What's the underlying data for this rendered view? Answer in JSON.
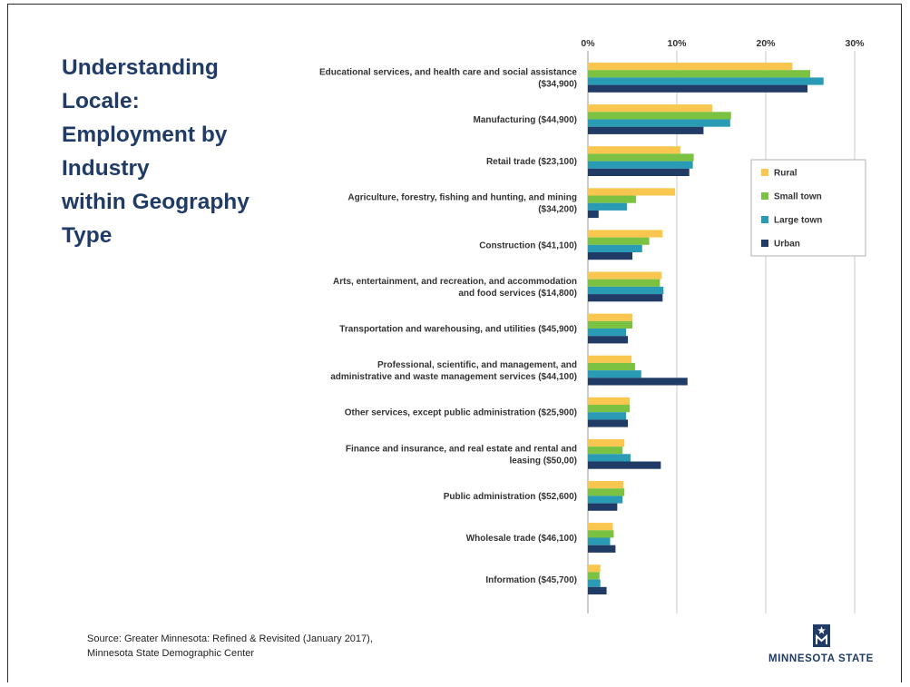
{
  "title_lines": [
    "Understanding",
    "Locale:",
    "Employment by",
    "Industry",
    "within Geography",
    "Type"
  ],
  "source_lines": [
    "Source: Greater Minnesota: Refined & Revisited (January 2017),",
    "Minnesota State Demographic Center"
  ],
  "logo": {
    "text": "MINNESOTA STATE",
    "icon": "minnesota-state-star-m-icon"
  },
  "colors": {
    "Rural": "#f9c74f",
    "Small town": "#7cc242",
    "Large town": "#2a9bb5",
    "Urban": "#1f3b66",
    "title": "#1f3b66"
  },
  "chart_data": {
    "type": "bar",
    "orientation": "horizontal",
    "xlim": [
      0,
      30
    ],
    "xticks": [
      "0%",
      "10%",
      "20%",
      "30%"
    ],
    "tick_values": [
      0,
      10,
      20,
      30
    ],
    "grid": true,
    "legend_position": "right",
    "categories": [
      [
        "Educational services, and health care and social assistance",
        "($34,900)"
      ],
      [
        "Manufacturing ($44,900)"
      ],
      [
        "Retail trade ($23,100)"
      ],
      [
        "Agriculture, forestry, fishing and hunting, and mining",
        "($34,200)"
      ],
      [
        "Construction ($41,100)"
      ],
      [
        "Arts, entertainment, and recreation, and accommodation",
        "and food services ($14,800)"
      ],
      [
        "Transportation and warehousing, and utilities ($45,900)"
      ],
      [
        "Professional, scientific, and management, and",
        "administrative and waste management services ($44,100)"
      ],
      [
        "Other services, except public administration ($25,900)"
      ],
      [
        "Finance and insurance, and real estate and rental and",
        "leasing ($50,00)"
      ],
      [
        "Public administration ($52,600)"
      ],
      [
        "Wholesale trade ($46,100)"
      ],
      [
        "Information ($45,700)"
      ]
    ],
    "series": [
      {
        "name": "Rural",
        "values": [
          23.0,
          14.0,
          10.4,
          9.8,
          8.4,
          8.3,
          5.0,
          4.9,
          4.7,
          4.1,
          4.0,
          2.8,
          1.4
        ]
      },
      {
        "name": "Small town",
        "values": [
          25.0,
          16.1,
          11.9,
          5.4,
          6.9,
          8.1,
          5.0,
          5.3,
          4.7,
          3.9,
          4.1,
          2.9,
          1.3
        ]
      },
      {
        "name": "Large town",
        "values": [
          26.5,
          16.0,
          11.8,
          4.4,
          6.1,
          8.5,
          4.3,
          6.0,
          4.3,
          4.8,
          3.9,
          2.5,
          1.4
        ]
      },
      {
        "name": "Urban",
        "values": [
          24.7,
          13.0,
          11.4,
          1.2,
          5.0,
          8.4,
          4.5,
          11.2,
          4.5,
          8.2,
          3.3,
          3.1,
          2.1
        ]
      }
    ]
  }
}
